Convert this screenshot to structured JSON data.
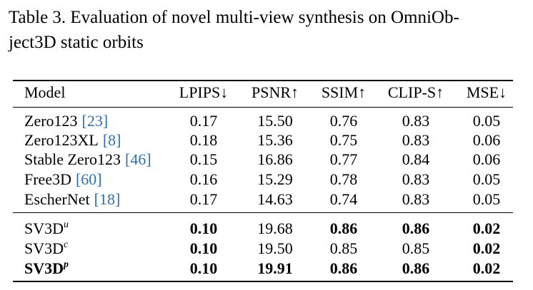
{
  "caption": [
    "Table 3.  Evaluation of novel multi-view synthesis on OmniOb-",
    "ject3D static orbits"
  ],
  "table": {
    "header": [
      "Model",
      "LPIPS↓",
      "PSNR↑",
      "SSIM↑",
      "CLIP-S↑",
      "MSE↓"
    ],
    "groups": [
      [
        {
          "model": {
            "name": "Zero123",
            "ref": "[23]"
          },
          "values": [
            "0.17",
            "15.50",
            "0.76",
            "0.83",
            "0.05"
          ]
        },
        {
          "model": {
            "name": "Zero123XL",
            "ref": "[8]"
          },
          "values": [
            "0.18",
            "15.36",
            "0.75",
            "0.83",
            "0.06"
          ]
        },
        {
          "model": {
            "name": "Stable Zero123",
            "ref": "[46]"
          },
          "values": [
            "0.15",
            "16.86",
            "0.77",
            "0.84",
            "0.06"
          ]
        },
        {
          "model": {
            "name": "Free3D",
            "ref": "[60]"
          },
          "values": [
            "0.16",
            "15.29",
            "0.78",
            "0.83",
            "0.05"
          ]
        },
        {
          "model": {
            "name": "EscherNet",
            "ref": "[18]"
          },
          "values": [
            "0.17",
            "14.63",
            "0.74",
            "0.83",
            "0.05"
          ]
        }
      ],
      [
        {
          "model": {
            "name": "SV3D",
            "sup": "u"
          },
          "values": [
            "0.10",
            "19.68",
            "0.86",
            "0.86",
            "0.02"
          ],
          "bold": [
            0,
            2,
            3,
            4
          ]
        },
        {
          "model": {
            "name": "SV3D",
            "sup": "c"
          },
          "values": [
            "0.10",
            "19.50",
            "0.85",
            "0.85",
            "0.02"
          ],
          "bold": [
            0,
            4
          ]
        },
        {
          "model": {
            "name": "SV3D",
            "sup": "p"
          },
          "values": [
            "0.10",
            "19.91",
            "0.86",
            "0.86",
            "0.02"
          ],
          "bold": [
            0,
            1,
            2,
            3,
            4
          ],
          "bold_model": true
        }
      ]
    ]
  }
}
